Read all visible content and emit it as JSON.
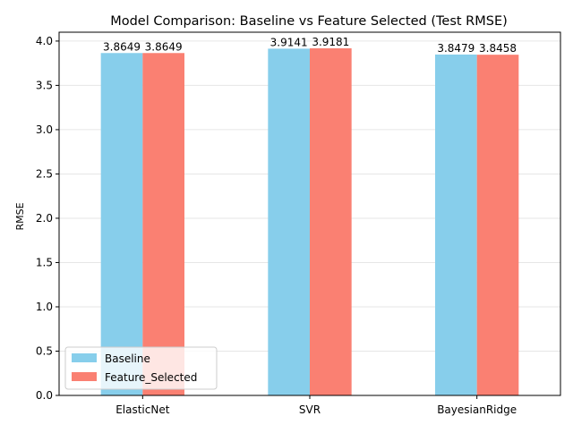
{
  "chart_data": {
    "type": "bar",
    "title": "Model Comparison: Baseline vs Feature Selected (Test RMSE)",
    "xlabel": "",
    "ylabel": "RMSE",
    "categories": [
      "ElasticNet",
      "SVR",
      "BayesianRidge"
    ],
    "series": [
      {
        "name": "Baseline",
        "color": "#87ceeb",
        "values": [
          3.8649,
          3.9141,
          3.8479
        ],
        "labels": [
          "3.8649",
          "3.9141",
          "3.8479"
        ]
      },
      {
        "name": "Feature_Selected",
        "color": "#fa8072",
        "values": [
          3.8649,
          3.9181,
          3.8458
        ],
        "labels": [
          "3.8649",
          "3.9181",
          "3.8458"
        ]
      }
    ],
    "ylim": [
      0,
      4.1
    ],
    "yticks": [
      "0.0",
      "0.5",
      "1.0",
      "1.5",
      "2.0",
      "2.5",
      "3.0",
      "3.5",
      "4.0"
    ],
    "grid": "y",
    "legend_position": "lower-left"
  }
}
